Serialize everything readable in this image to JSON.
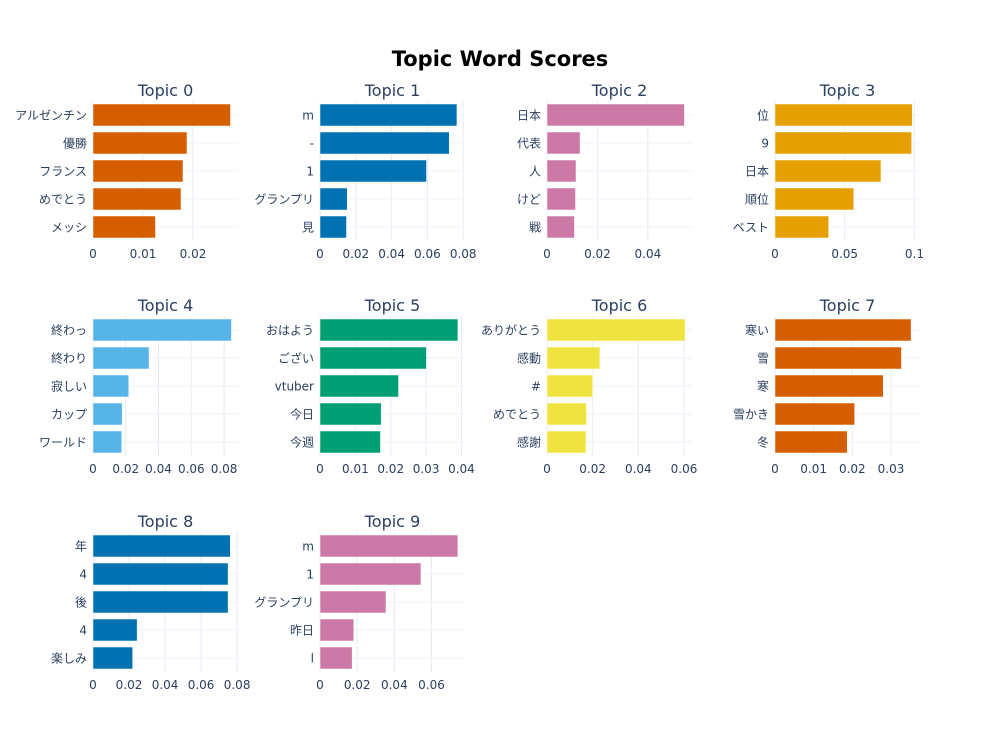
{
  "title": "Topic Word Scores",
  "colors": [
    "#d55e00",
    "#0072b2",
    "#cc79a7",
    "#e69f00",
    "#56b4e9",
    "#009e73",
    "#f0e442",
    "#d55e00",
    "#0072b2",
    "#cc79a7"
  ],
  "chart_data": [
    {
      "type": "bar",
      "orientation": "horizontal",
      "title": "Topic 0",
      "categories": [
        "アルゼンチン",
        "優勝",
        "フランス",
        "めでとう",
        "メッシ"
      ],
      "values": [
        0.0275,
        0.0188,
        0.018,
        0.0176,
        0.0125
      ],
      "xlim": [
        0,
        0.029
      ],
      "xticks": [
        0,
        0.01,
        0.02
      ],
      "xtick_labels": [
        "0",
        "0.01",
        "0.02"
      ]
    },
    {
      "type": "bar",
      "orientation": "horizontal",
      "title": "Topic 1",
      "categories": [
        "m",
        "-",
        "1",
        "グランプリ",
        "見"
      ],
      "values": [
        0.0765,
        0.0722,
        0.0595,
        0.0152,
        0.0148
      ],
      "xlim": [
        0,
        0.081
      ],
      "xticks": [
        0,
        0.02,
        0.04,
        0.06,
        0.08
      ],
      "xtick_labels": [
        "0",
        "0.02",
        "0.04",
        "0.06",
        "0.08"
      ]
    },
    {
      "type": "bar",
      "orientation": "horizontal",
      "title": "Topic 2",
      "categories": [
        "日本",
        "代表",
        "人",
        "けど",
        "戦"
      ],
      "values": [
        0.0545,
        0.0131,
        0.0115,
        0.0113,
        0.0109
      ],
      "xlim": [
        0,
        0.0575
      ],
      "xticks": [
        0,
        0.02,
        0.04
      ],
      "xtick_labels": [
        "0",
        "0.02",
        "0.04"
      ]
    },
    {
      "type": "bar",
      "orientation": "horizontal",
      "title": "Topic 3",
      "categories": [
        "位",
        "9",
        "日本",
        "順位",
        "ベスト"
      ],
      "values": [
        0.0985,
        0.098,
        0.076,
        0.0565,
        0.0385
      ],
      "xlim": [
        0,
        0.104
      ],
      "xticks": [
        0,
        0.05,
        0.1
      ],
      "xtick_labels": [
        "0",
        "0.05",
        "0.1"
      ]
    },
    {
      "type": "bar",
      "orientation": "horizontal",
      "title": "Topic 4",
      "categories": [
        "終わっ",
        "終わり",
        "寂しい",
        "カップ",
        "ワールド"
      ],
      "values": [
        0.0845,
        0.0342,
        0.0218,
        0.0178,
        0.0175
      ],
      "xlim": [
        0,
        0.0885
      ],
      "xticks": [
        0,
        0.02,
        0.04,
        0.06,
        0.08
      ],
      "xtick_labels": [
        "0",
        "0.02",
        "0.04",
        "0.06",
        "0.08"
      ]
    },
    {
      "type": "bar",
      "orientation": "horizontal",
      "title": "Topic 5",
      "categories": [
        "おはよう",
        "ござい",
        "vtuber",
        "今日",
        "今週"
      ],
      "values": [
        0.039,
        0.0301,
        0.0222,
        0.0173,
        0.0171
      ],
      "xlim": [
        0,
        0.041
      ],
      "xticks": [
        0,
        0.01,
        0.02,
        0.03,
        0.04
      ],
      "xtick_labels": [
        "0",
        "0.01",
        "0.02",
        "0.03",
        "0.04"
      ]
    },
    {
      "type": "bar",
      "orientation": "horizontal",
      "title": "Topic 6",
      "categories": [
        "ありがとう",
        "感動",
        "#",
        "めでとう",
        "感謝"
      ],
      "values": [
        0.0605,
        0.0232,
        0.02,
        0.0173,
        0.0171
      ],
      "xlim": [
        0,
        0.0635
      ],
      "xticks": [
        0,
        0.02,
        0.04,
        0.06
      ],
      "xtick_labels": [
        "0",
        "0.02",
        "0.04",
        "0.06"
      ]
    },
    {
      "type": "bar",
      "orientation": "horizontal",
      "title": "Topic 7",
      "categories": [
        "寒い",
        "雪",
        "寒",
        "雪かき",
        "冬"
      ],
      "values": [
        0.0352,
        0.0327,
        0.028,
        0.0206,
        0.0187
      ],
      "xlim": [
        0,
        0.0375
      ],
      "xticks": [
        0,
        0.01,
        0.02,
        0.03
      ],
      "xtick_labels": [
        "0",
        "0.01",
        "0.02",
        "0.03"
      ]
    },
    {
      "type": "bar",
      "orientation": "horizontal",
      "title": "Topic 8",
      "categories": [
        "年",
        "4",
        "後",
        "4",
        "楽しみ"
      ],
      "values": [
        0.0762,
        0.075,
        0.075,
        0.0245,
        0.022
      ],
      "xlim": [
        0,
        0.0805
      ],
      "xticks": [
        0,
        0.02,
        0.04,
        0.06,
        0.08
      ],
      "xtick_labels": [
        "0",
        "0.02",
        "0.04",
        "0.06",
        "0.08"
      ]
    },
    {
      "type": "bar",
      "orientation": "horizontal",
      "title": "Topic 9",
      "categories": [
        "m",
        "1",
        "グランプリ",
        "昨日",
        "l"
      ],
      "values": [
        0.0742,
        0.0543,
        0.0355,
        0.0182,
        0.0173
      ],
      "xlim": [
        0,
        0.078
      ],
      "xticks": [
        0,
        0.02,
        0.04,
        0.06
      ],
      "xtick_labels": [
        "0",
        "0.02",
        "0.04",
        "0.06"
      ]
    }
  ]
}
